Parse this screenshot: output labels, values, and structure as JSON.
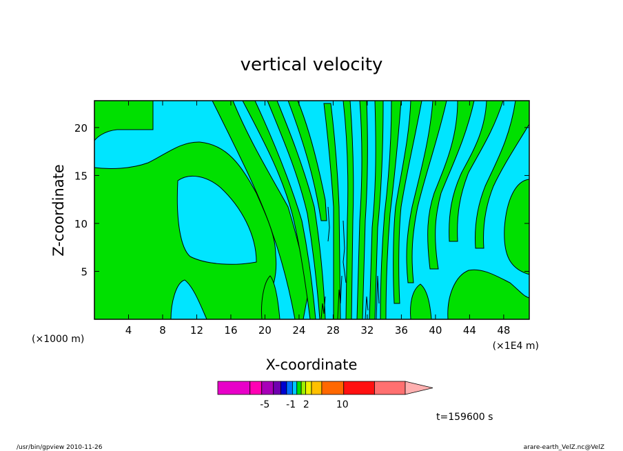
{
  "chart_data": {
    "type": "contour",
    "title": "vertical velocity",
    "xlabel": "X-coordinate",
    "ylabel": "Z-coordinate",
    "x_unit_left": "(×1000 m)",
    "x_unit_right": "(×1E4 m)",
    "x_ticks": [
      "4",
      "8",
      "12",
      "16",
      "20",
      "24",
      "28",
      "32",
      "36",
      "40",
      "44",
      "48"
    ],
    "x_tick_values": [
      4,
      8,
      12,
      16,
      20,
      24,
      28,
      32,
      36,
      40,
      44,
      48
    ],
    "y_ticks": [
      "5",
      "10",
      "15",
      "20"
    ],
    "y_tick_values": [
      5,
      10,
      15,
      20
    ],
    "xlim": [
      0,
      51
    ],
    "ylim": [
      0,
      22.8
    ],
    "fill_colors": {
      "negative": "#00e5ff",
      "positive": "#00e000"
    },
    "colorbar": {
      "colors": [
        "#e800c8",
        "#ff00b4",
        "#a800b8",
        "#7000b0",
        "#0000d0",
        "#0070ff",
        "#00c8ff",
        "#00e000",
        "#a0f000",
        "#f0f000",
        "#ffc000",
        "#ff6800",
        "#ff1010",
        "#ff7070",
        "#ffb0b0"
      ],
      "labels": [
        "-5",
        "-1",
        "2",
        "10"
      ],
      "label_values": [
        -5,
        -1,
        2,
        10
      ]
    },
    "time_label": "t=159600 s"
  },
  "footer": {
    "left": "/usr/bin/gpview   2010-11-26",
    "right": "arare-earth_VelZ.nc@VelZ"
  }
}
